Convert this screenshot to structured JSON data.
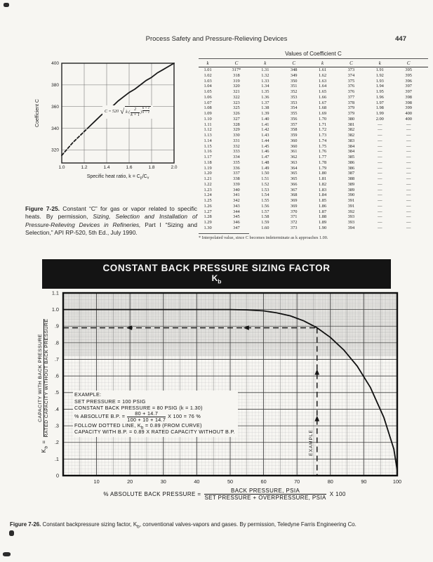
{
  "colors": {
    "paper": "#f7f6f2",
    "ink": "#1a1a1a",
    "banner_bg": "#141414",
    "banner_text": "#f5f5f5",
    "grid_minor": "#b9b9b9",
    "grid_major": "#3f3f3f"
  },
  "page": {
    "header_title": "Process Safety and Pressure-Relieving Devices",
    "page_number": "447"
  },
  "figure25": {
    "eq": {
      "lhs": "C = 520",
      "pre": "k (",
      "num": "2",
      "den": "k + 1",
      "close": ")",
      "exp_num": "k + 1",
      "exp_den": "k − 1"
    },
    "caption_segments": [
      {
        "text": "Figure 7-25.",
        "bold": true
      },
      {
        "text": " Constant “C” for gas or vapor related to specific heats. By permission, "
      },
      {
        "text": "Sizing, Selection and Installation of Pressure-Relieving Devices in Refineries,",
        "italic": true
      },
      {
        "text": " Part I “Sizing and Selection,” API RP-520, 5th Ed., July 1990."
      }
    ]
  },
  "table": {
    "title": "Values of Coefficient C",
    "headers": [
      "k",
      "C",
      "k",
      "C",
      "k",
      "C",
      "k",
      "C"
    ],
    "rows": [
      [
        "1.01",
        "317*",
        "1.31",
        "348",
        "1.61",
        "373",
        "1.91",
        "395"
      ],
      [
        "1.02",
        "318",
        "1.32",
        "349",
        "1.62",
        "374",
        "1.92",
        "395"
      ],
      [
        "1.03",
        "319",
        "1.33",
        "350",
        "1.63",
        "375",
        "1.93",
        "396"
      ],
      [
        "1.04",
        "320",
        "1.34",
        "351",
        "1.64",
        "376",
        "1.94",
        "397"
      ],
      [
        "1.05",
        "321",
        "1.35",
        "352",
        "1.65",
        "376",
        "1.95",
        "397"
      ],
      [
        "1.06",
        "322",
        "1.36",
        "353",
        "1.66",
        "377",
        "1.96",
        "398"
      ],
      [
        "1.07",
        "323",
        "1.37",
        "353",
        "1.67",
        "378",
        "1.97",
        "398"
      ],
      [
        "1.08",
        "325",
        "1.38",
        "354",
        "1.68",
        "379",
        "1.98",
        "399"
      ],
      [
        "1.09",
        "326",
        "1.39",
        "355",
        "1.69",
        "379",
        "1.99",
        "400"
      ],
      [
        "1.10",
        "327",
        "1.40",
        "356",
        "1.70",
        "380",
        "2.00",
        "400"
      ],
      [
        "1.11",
        "328",
        "1.41",
        "357",
        "1.71",
        "381",
        "—",
        "—"
      ],
      [
        "1.12",
        "329",
        "1.42",
        "358",
        "1.72",
        "382",
        "—",
        "—"
      ],
      [
        "1.13",
        "330",
        "1.43",
        "359",
        "1.73",
        "382",
        "—",
        "—"
      ],
      [
        "1.14",
        "331",
        "1.44",
        "360",
        "1.74",
        "383",
        "—",
        "—"
      ],
      [
        "1.15",
        "332",
        "1.45",
        "360",
        "1.75",
        "384",
        "—",
        "—"
      ],
      [
        "1.16",
        "333",
        "1.46",
        "361",
        "1.76",
        "384",
        "—",
        "—"
      ],
      [
        "1.17",
        "334",
        "1.47",
        "362",
        "1.77",
        "385",
        "—",
        "—"
      ],
      [
        "1.18",
        "335",
        "1.48",
        "363",
        "1.78",
        "386",
        "—",
        "—"
      ],
      [
        "1.19",
        "336",
        "1.49",
        "364",
        "1.79",
        "386",
        "—",
        "—"
      ],
      [
        "1.20",
        "337",
        "1.50",
        "365",
        "1.80",
        "387",
        "—",
        "—"
      ],
      [
        "1.21",
        "338",
        "1.51",
        "365",
        "1.81",
        "388",
        "—",
        "—"
      ],
      [
        "1.22",
        "339",
        "1.52",
        "366",
        "1.82",
        "389",
        "—",
        "—"
      ],
      [
        "1.23",
        "340",
        "1.53",
        "367",
        "1.83",
        "389",
        "—",
        "—"
      ],
      [
        "1.24",
        "341",
        "1.54",
        "368",
        "1.84",
        "390",
        "—",
        "—"
      ],
      [
        "1.25",
        "342",
        "1.55",
        "369",
        "1.85",
        "391",
        "—",
        "—"
      ],
      [
        "1.26",
        "343",
        "1.56",
        "369",
        "1.86",
        "391",
        "—",
        "—"
      ],
      [
        "1.27",
        "344",
        "1.57",
        "370",
        "1.87",
        "392",
        "—",
        "—"
      ],
      [
        "1.28",
        "345",
        "1.58",
        "371",
        "1.88",
        "393",
        "—",
        "—"
      ],
      [
        "1.29",
        "346",
        "1.59",
        "372",
        "1.89",
        "393",
        "—",
        "—"
      ],
      [
        "1.30",
        "347",
        "1.60",
        "373",
        "1.90",
        "394",
        "—",
        "—"
      ]
    ],
    "footnote": "* Interpolated value, since C becomes indeterminate as k approaches 1.00."
  },
  "figure26": {
    "banner_line1": "CONSTANT BACK PRESSURE SIZING FACTOR",
    "banner_k": "K",
    "banner_k_sub": "b",
    "example": {
      "line1": "EXAMPLE:",
      "line2": "SET PRESSURE = 100 PSIG",
      "line3": "CONSTANT BACK PRESSURE = 80 PSIG   (k = 1.30)",
      "line4_prefix": "% ABSOLUTE B.P. =",
      "line4_num": "80 + 14.7",
      "line4_den": "100 + 10 + 14.7",
      "line4_suffix": "X 100 = 76 %",
      "line5": "FOLLOW DOTTED LINE,  K",
      "line5_sub": "b",
      "line5_rest": " = 0.89 (FROM CURVE)",
      "line6": "CAPACITY WITH B.P. = 0.89 X RATED CAPACITY WITHOUT B.P."
    },
    "guide_label": "EXAMPLE",
    "ylabel_k": "K",
    "ylabel_k_sub": "b",
    "ylabel_eq": " =",
    "ylabel_num": "CAPACITY WITH BACK PRESSURE",
    "ylabel_den": "RATED CAPACITY WITHOUT BACK PRESSURE",
    "xlabel_prefix": "% ABSOLUTE BACK PRESSURE =",
    "xlabel_num": "BACK PRESSURE, PSIA",
    "xlabel_den": "SET PRESSURE + OVERPRESSURE, PSIA",
    "xlabel_suffix": "X 100",
    "caption_segments": [
      {
        "text": "Figure 7-26.",
        "bold": true
      },
      {
        "text": " Constant backpressure sizing factor, K"
      },
      {
        "text": "b",
        "sub": true
      },
      {
        "text": ", conventional valves-vapors and gases. By permission, Teledyne Farris Engineering Co."
      }
    ]
  },
  "chart_data": [
    {
      "type": "line",
      "title": "Figure 7-25 — Constant C for gas or vapor related to specific heats",
      "xlabel": "Specific heat ratio, k = Cp/Cv",
      "xlabel_parts": {
        "main": "Specific heat ratio, k = C",
        "sub1": "p",
        "mid": "/C",
        "sub2": "v"
      },
      "ylabel": "Coefficient C",
      "xlim": [
        1.0,
        2.0
      ],
      "ylim": [
        308,
        400
      ],
      "xticks": [
        "1.0",
        "1.2",
        "1.4",
        "1.6",
        "1.8",
        "2.0"
      ],
      "yticks": [
        "320",
        "340",
        "360",
        "380",
        "400"
      ],
      "grid": true,
      "annotation": "C = 520 sqrt( k (2/(k+1))^((k+1)/(k-1)) )",
      "series": [
        {
          "name": "C (dashed low-k extrapolation)",
          "style": "dashed",
          "x": [
            1.0,
            1.05,
            1.1,
            1.15,
            1.2,
            1.25
          ],
          "y": [
            315,
            321,
            327,
            332,
            337,
            342
          ]
        },
        {
          "name": "C",
          "style": "solid",
          "x": [
            1.25,
            1.3,
            1.35,
            1.4,
            1.45,
            1.5,
            1.55,
            1.6,
            1.65,
            1.7,
            1.75,
            1.8,
            1.85,
            1.9,
            1.95,
            2.0
          ],
          "y": [
            342,
            347,
            352,
            356,
            360,
            365,
            369,
            373,
            376,
            380,
            384,
            387,
            391,
            394,
            397,
            400
          ]
        }
      ]
    },
    {
      "type": "line",
      "title": "CONSTANT BACK PRESSURE SIZING FACTOR Kb",
      "xlabel": "% ABSOLUTE BACK PRESSURE = (BACK PRESSURE, PSIA / SET PRESSURE + OVERPRESSURE, PSIA) X 100",
      "ylabel": "Kb = CAPACITY WITH BACK PRESSURE / RATED CAPACITY WITHOUT BACK PRESSURE",
      "xlim": [
        0,
        100
      ],
      "ylim": [
        0,
        1.1
      ],
      "xticks": [
        10,
        20,
        30,
        40,
        50,
        60,
        70,
        80,
        90,
        100
      ],
      "ytick_labels": [
        "1.1",
        "1.0",
        ".9",
        ".8",
        ".7",
        ".6",
        ".5",
        ".4",
        ".3",
        ".2",
        ".1",
        "0"
      ],
      "grid": "fine engineering grid, darker band 0.72–1.1",
      "series": [
        {
          "name": "Kb",
          "x": [
            0,
            40,
            50,
            55,
            60,
            64,
            68,
            72,
            76,
            80,
            84,
            88,
            92,
            96,
            99,
            100
          ],
          "y": [
            1.0,
            1.0,
            1.0,
            0.998,
            0.992,
            0.98,
            0.962,
            0.932,
            0.89,
            0.832,
            0.757,
            0.66,
            0.53,
            0.35,
            0.16,
            0.03
          ]
        }
      ],
      "guides": {
        "example_x": 76,
        "example_kb": 0.89
      }
    }
  ]
}
